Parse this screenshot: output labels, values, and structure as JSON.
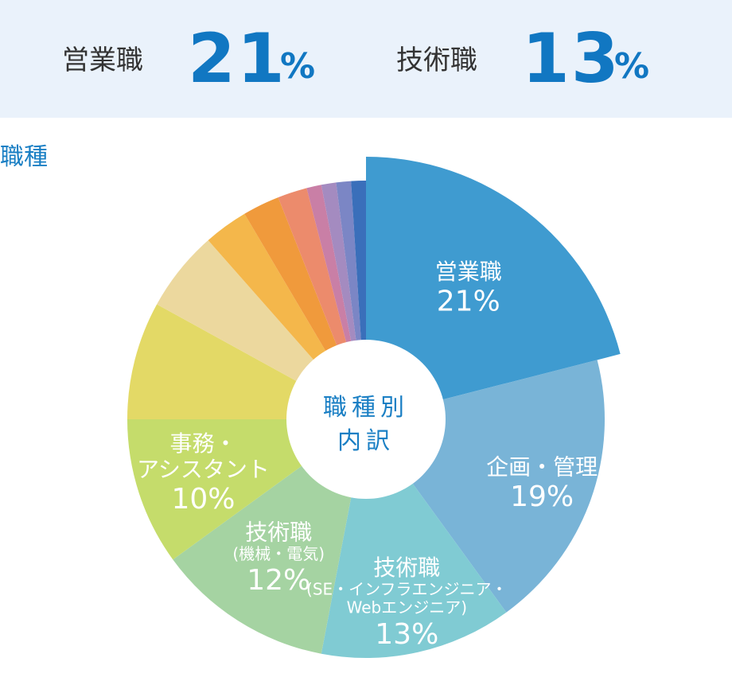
{
  "banner": {
    "stat1": {
      "label": "営業職",
      "value": "21",
      "unit": "%"
    },
    "stat2": {
      "label": "技術職",
      "value": "13",
      "unit": "%"
    }
  },
  "section_title": "職種",
  "chart_data": {
    "type": "pie",
    "title": "職種別内訳",
    "center_label": [
      "職種別",
      "内訳"
    ],
    "slices": [
      {
        "name": "営業職",
        "value": 21,
        "color": "#3f9bd0",
        "label_lines": [
          "営業職"
        ],
        "pct_text": "21%",
        "exploded": true
      },
      {
        "name": "企画・管理",
        "value": 19,
        "color": "#79b4d7",
        "label_lines": [
          "企画・管理"
        ],
        "pct_text": "19%"
      },
      {
        "name": "技術職(SE・インフラエンジニア・Webエンジニア)",
        "value": 13,
        "color": "#80cbd3",
        "label_lines": [
          "技術職",
          "(SE・インフラエンジニア・",
          "Webエンジニア)"
        ],
        "pct_text": "13%"
      },
      {
        "name": "技術職(機械・電気)",
        "value": 12,
        "color": "#a5d3a2",
        "label_lines": [
          "技術職",
          "(機械・電気)"
        ],
        "pct_text": "12%"
      },
      {
        "name": "事務・アシスタント",
        "value": 10,
        "color": "#c5dc6b",
        "label_lines": [
          "事務・",
          "アシスタント"
        ],
        "pct_text": "10%"
      },
      {
        "name": "",
        "value": 8,
        "color": "#e3d966",
        "label_lines": [],
        "pct_text": ""
      },
      {
        "name": "",
        "value": 5.5,
        "color": "#ecd89e",
        "label_lines": [],
        "pct_text": ""
      },
      {
        "name": "",
        "value": 3,
        "color": "#f4b74b",
        "label_lines": [],
        "pct_text": ""
      },
      {
        "name": "",
        "value": 2.5,
        "color": "#f09a3c",
        "label_lines": [],
        "pct_text": ""
      },
      {
        "name": "",
        "value": 2,
        "color": "#ec8b6c",
        "label_lines": [],
        "pct_text": ""
      },
      {
        "name": "",
        "value": 1,
        "color": "#c97fa6",
        "label_lines": [],
        "pct_text": ""
      },
      {
        "name": "",
        "value": 1,
        "color": "#a48bc0",
        "label_lines": [],
        "pct_text": ""
      },
      {
        "name": "",
        "value": 1,
        "color": "#7b86c5",
        "label_lines": [],
        "pct_text": ""
      },
      {
        "name": "",
        "value": 1,
        "color": "#3a6fba",
        "label_lines": [],
        "pct_text": ""
      }
    ]
  }
}
